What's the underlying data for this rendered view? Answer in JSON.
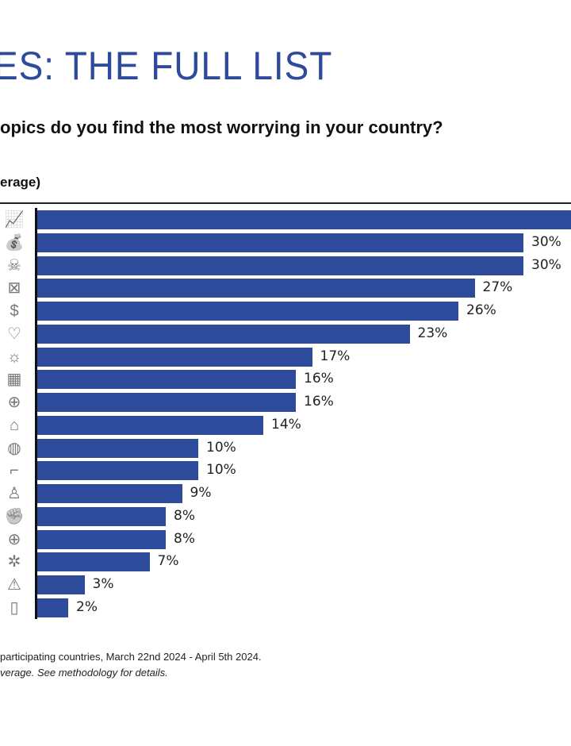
{
  "header": {
    "title": "ES: THE FULL LIST",
    "question": "opics do you find the most worrying in your country?",
    "base": "erage)"
  },
  "chart_data": {
    "type": "bar",
    "orientation": "horizontal",
    "color": "#2e4a9a",
    "icons": [
      "chart-line-icon",
      "money-bag-icon",
      "skull-crossbones-icon",
      "medical-kit-icon",
      "head-dollar-icon",
      "heart-person-icon",
      "sun-icon",
      "calculator-icon",
      "globe-head-icon",
      "graduation-cap-icon",
      "earth-icon",
      "gun-icon",
      "person-icon",
      "fist-icon",
      "globe-leaf-icon",
      "puzzle-people-icon",
      "warning-icon",
      "door-icon"
    ],
    "values": [
      null,
      30,
      30,
      27,
      26,
      23,
      17,
      16,
      16,
      14,
      10,
      10,
      9,
      8,
      8,
      7,
      3,
      2
    ],
    "labels": [
      "",
      "30%",
      "30%",
      "27%",
      "26%",
      "23%",
      "17%",
      "16%",
      "16%",
      "14%",
      "10%",
      "10%",
      "9%",
      "8%",
      "8%",
      "7%",
      "3%",
      "2%"
    ]
  },
  "footer": {
    "source": "participating countries, March 22nd 2024 - April 5th 2024.",
    "note": "verage. See methodology for details."
  }
}
